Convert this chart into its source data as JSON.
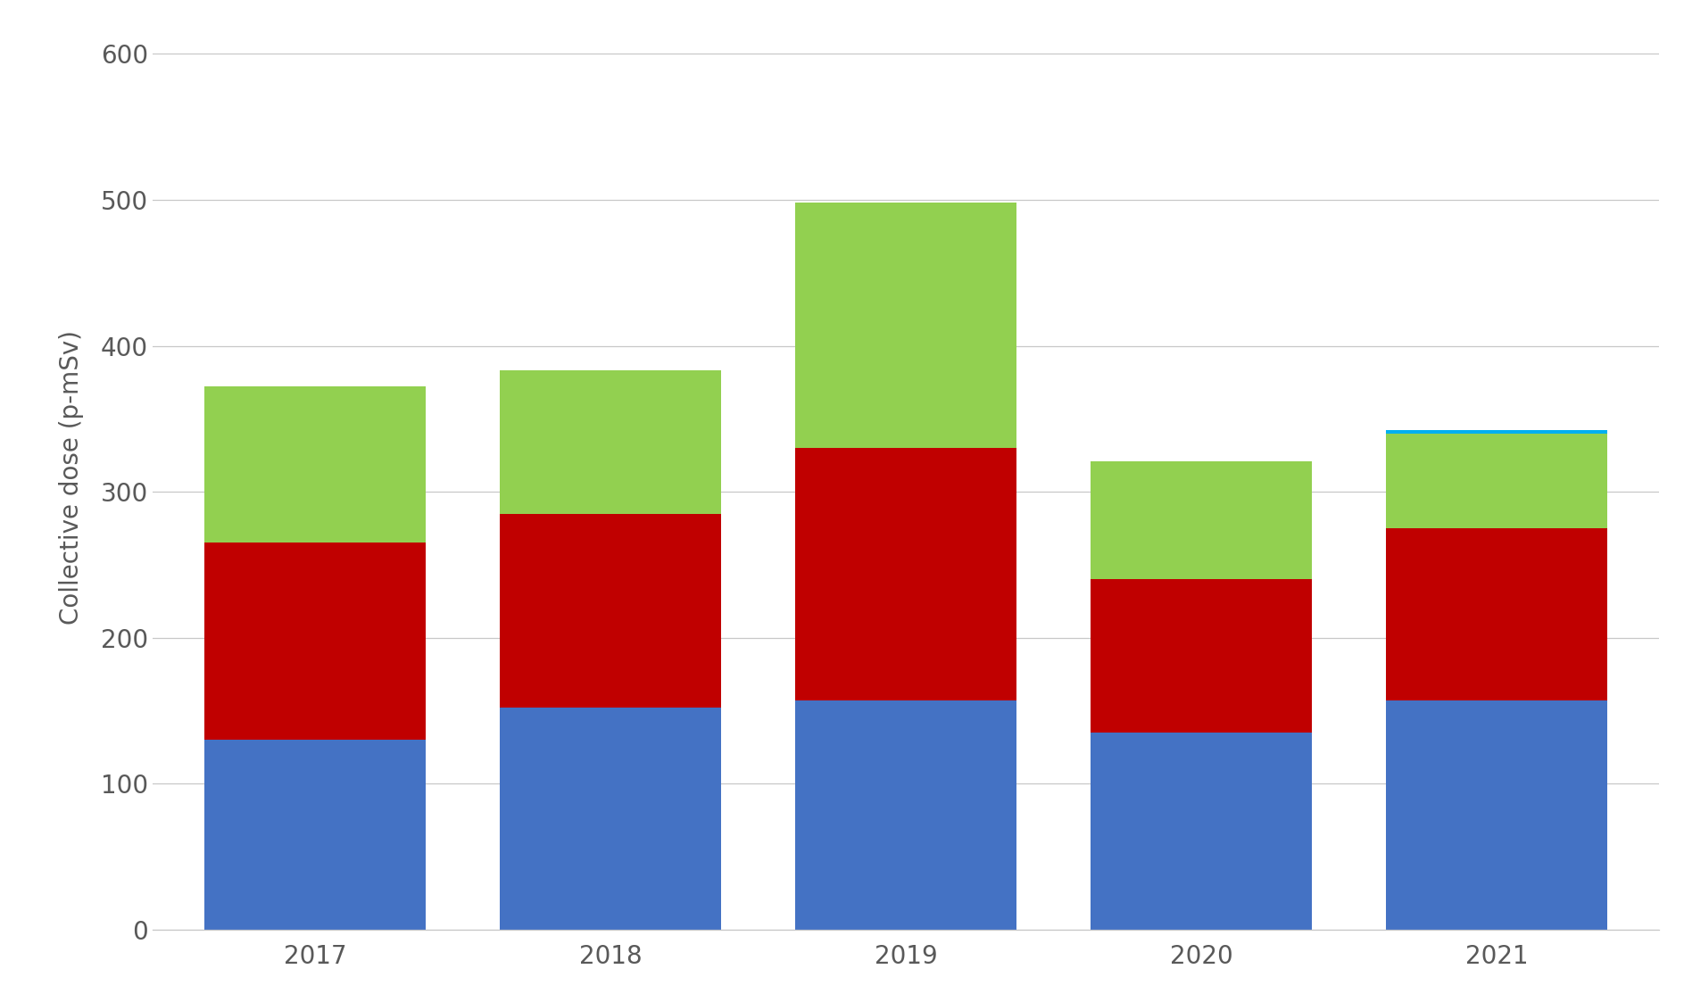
{
  "years": [
    "2017",
    "2018",
    "2019",
    "2020",
    "2021"
  ],
  "blue_values": [
    130,
    152,
    157,
    135,
    157
  ],
  "red_values": [
    135,
    133,
    173,
    105,
    118
  ],
  "green_values": [
    107,
    98,
    168,
    81,
    65
  ],
  "teal_values": [
    0,
    0,
    0,
    0,
    2
  ],
  "blue_color": "#4472C4",
  "red_color": "#C00000",
  "green_color": "#92D050",
  "teal_color": "#00B0F0",
  "ylabel": "Collective dose (p-mSv)",
  "ylim": [
    0,
    620
  ],
  "yticks": [
    0,
    100,
    200,
    300,
    400,
    500,
    600
  ],
  "background_color": "#FFFFFF",
  "bar_width": 0.75,
  "gridcolor": "#C8C8C8",
  "tick_fontsize": 20,
  "label_fontsize": 20,
  "tick_color": "#595959"
}
